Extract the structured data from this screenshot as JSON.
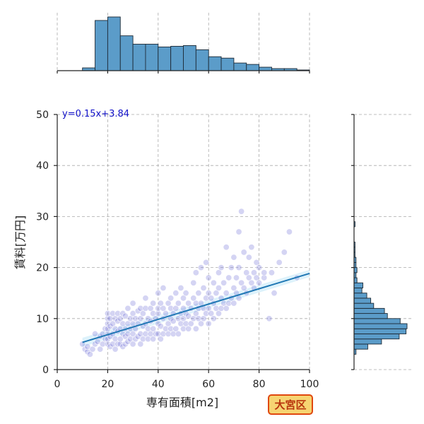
{
  "chart_data": {
    "type": "scatter",
    "xlabel": "専有面積[m2]",
    "ylabel": "賃料[万円]",
    "xlim": [
      0,
      100
    ],
    "ylim": [
      0,
      50
    ],
    "x_ticks": [
      "0",
      "20",
      "40",
      "60",
      "80",
      "100"
    ],
    "y_ticks": [
      "0",
      "10",
      "20",
      "30",
      "40",
      "50"
    ],
    "grid": true,
    "regression": {
      "equation": "y=0.15x+3.84",
      "slope": 0.15,
      "intercept": 3.84,
      "x_range": [
        10,
        100
      ]
    },
    "badge": "大宮区",
    "x_marginal_hist": {
      "bin_edges": [
        10,
        15,
        20,
        25,
        30,
        35,
        40,
        45,
        50,
        55,
        60,
        65,
        70,
        75,
        80,
        85,
        90,
        95,
        100
      ],
      "counts": [
        4,
        72,
        77,
        50,
        38,
        38,
        34,
        35,
        36,
        30,
        20,
        18,
        11,
        9,
        5,
        3,
        3,
        1
      ]
    },
    "y_marginal_hist": {
      "bin_edges": [
        3,
        4,
        5,
        6,
        7,
        8,
        9,
        10,
        11,
        12,
        13,
        14,
        15,
        16,
        17,
        18,
        19,
        20,
        21,
        22,
        23,
        24,
        25,
        26,
        27,
        28,
        29,
        30,
        31
      ],
      "counts": [
        2,
        14,
        28,
        46,
        53,
        54,
        47,
        34,
        31,
        20,
        17,
        13,
        8,
        9,
        3,
        2,
        3,
        2,
        2,
        1,
        1,
        1,
        0,
        0,
        0,
        1,
        0,
        0
      ]
    },
    "points": [
      [
        10,
        5
      ],
      [
        11,
        4
      ],
      [
        12,
        3.5
      ],
      [
        12,
        4.5
      ],
      [
        13,
        3
      ],
      [
        14,
        4
      ],
      [
        15,
        5
      ],
      [
        15,
        7
      ],
      [
        16,
        5.5
      ],
      [
        17,
        4
      ],
      [
        17,
        6.5
      ],
      [
        18,
        7
      ],
      [
        18,
        5
      ],
      [
        19,
        6
      ],
      [
        19,
        8
      ],
      [
        20,
        5
      ],
      [
        20,
        6
      ],
      [
        20,
        7
      ],
      [
        20,
        8
      ],
      [
        20,
        9
      ],
      [
        20,
        10
      ],
      [
        20,
        11
      ],
      [
        21,
        4.5
      ],
      [
        21,
        6.5
      ],
      [
        21,
        8.5
      ],
      [
        21,
        10
      ],
      [
        22,
        5
      ],
      [
        22,
        7
      ],
      [
        22,
        9
      ],
      [
        22,
        11
      ],
      [
        23,
        4
      ],
      [
        23,
        6
      ],
      [
        23,
        8
      ],
      [
        23,
        10
      ],
      [
        24,
        5
      ],
      [
        24,
        7.5
      ],
      [
        24,
        9.5
      ],
      [
        24,
        11
      ],
      [
        25,
        5
      ],
      [
        25,
        6
      ],
      [
        25,
        8
      ],
      [
        25,
        10
      ],
      [
        26,
        4.5
      ],
      [
        26,
        7
      ],
      [
        26,
        9
      ],
      [
        26,
        11
      ],
      [
        27,
        5
      ],
      [
        27,
        6.5
      ],
      [
        27,
        8
      ],
      [
        27,
        10.5
      ],
      [
        28,
        5.5
      ],
      [
        28,
        7
      ],
      [
        28,
        9
      ],
      [
        28,
        12
      ],
      [
        29,
        6
      ],
      [
        29,
        8
      ],
      [
        29,
        10
      ],
      [
        30,
        5
      ],
      [
        30,
        7
      ],
      [
        30,
        9
      ],
      [
        30,
        11
      ],
      [
        30,
        13
      ],
      [
        31,
        6
      ],
      [
        31,
        8
      ],
      [
        31,
        10
      ],
      [
        32,
        6.5
      ],
      [
        32,
        9
      ],
      [
        32,
        11.5
      ],
      [
        33,
        5
      ],
      [
        33,
        7
      ],
      [
        33,
        10
      ],
      [
        33,
        12
      ],
      [
        34,
        6
      ],
      [
        34,
        8.5
      ],
      [
        34,
        11
      ],
      [
        35,
        7
      ],
      [
        35,
        9
      ],
      [
        35,
        12
      ],
      [
        35,
        14
      ],
      [
        36,
        6
      ],
      [
        36,
        8
      ],
      [
        36,
        10
      ],
      [
        37,
        7
      ],
      [
        37,
        9.5
      ],
      [
        37,
        12
      ],
      [
        38,
        6
      ],
      [
        38,
        8
      ],
      [
        38,
        11
      ],
      [
        38,
        13
      ],
      [
        39,
        7
      ],
      [
        39,
        10
      ],
      [
        40,
        7
      ],
      [
        40,
        9
      ],
      [
        40,
        11
      ],
      [
        40,
        12
      ],
      [
        40,
        15
      ],
      [
        41,
        6
      ],
      [
        41,
        8.5
      ],
      [
        41,
        13
      ],
      [
        42,
        7
      ],
      [
        42,
        10
      ],
      [
        42,
        12
      ],
      [
        42,
        16
      ],
      [
        43,
        8
      ],
      [
        43,
        11
      ],
      [
        44,
        7
      ],
      [
        44,
        9
      ],
      [
        44,
        13
      ],
      [
        45,
        8
      ],
      [
        45,
        10
      ],
      [
        45,
        12
      ],
      [
        45,
        14
      ],
      [
        46,
        7
      ],
      [
        46,
        9.5
      ],
      [
        46,
        11
      ],
      [
        47,
        8
      ],
      [
        47,
        12
      ],
      [
        47,
        15
      ],
      [
        48,
        7
      ],
      [
        48,
        10
      ],
      [
        48,
        13
      ],
      [
        49,
        9
      ],
      [
        49,
        11
      ],
      [
        49,
        16
      ],
      [
        50,
        8
      ],
      [
        50,
        10
      ],
      [
        50,
        12
      ],
      [
        50,
        14
      ],
      [
        51,
        9
      ],
      [
        51,
        11
      ],
      [
        51,
        15
      ],
      [
        52,
        8
      ],
      [
        52,
        10.5
      ],
      [
        52,
        13
      ],
      [
        53,
        9
      ],
      [
        53,
        12
      ],
      [
        54,
        10
      ],
      [
        54,
        14
      ],
      [
        54,
        17
      ],
      [
        55,
        8
      ],
      [
        55,
        11
      ],
      [
        55,
        13
      ],
      [
        55,
        19
      ],
      [
        56,
        10
      ],
      [
        56,
        12
      ],
      [
        56,
        15
      ],
      [
        57,
        9
      ],
      [
        57,
        13
      ],
      [
        57,
        20
      ],
      [
        58,
        10
      ],
      [
        58,
        12
      ],
      [
        58,
        16
      ],
      [
        59,
        11
      ],
      [
        59,
        14
      ],
      [
        59,
        21
      ],
      [
        60,
        9
      ],
      [
        60,
        12
      ],
      [
        60,
        15
      ],
      [
        60,
        18
      ],
      [
        61,
        11
      ],
      [
        61,
        14
      ],
      [
        62,
        10
      ],
      [
        62,
        13
      ],
      [
        62,
        17
      ],
      [
        63,
        12
      ],
      [
        63,
        15
      ],
      [
        64,
        11
      ],
      [
        64,
        16
      ],
      [
        64,
        19
      ],
      [
        65,
        12
      ],
      [
        65,
        14
      ],
      [
        65,
        20
      ],
      [
        66,
        13
      ],
      [
        66,
        17
      ],
      [
        67,
        12
      ],
      [
        67,
        15
      ],
      [
        67,
        24
      ],
      [
        68,
        13
      ],
      [
        68,
        18
      ],
      [
        69,
        14
      ],
      [
        69,
        20
      ],
      [
        70,
        13
      ],
      [
        70,
        16
      ],
      [
        70,
        22
      ],
      [
        71,
        15
      ],
      [
        71,
        18
      ],
      [
        72,
        14
      ],
      [
        72,
        20
      ],
      [
        72,
        27
      ],
      [
        73,
        31
      ],
      [
        73,
        17
      ],
      [
        74,
        16
      ],
      [
        74,
        23
      ],
      [
        75,
        15
      ],
      [
        75,
        19
      ],
      [
        76,
        18
      ],
      [
        76,
        22
      ],
      [
        77,
        17
      ],
      [
        77,
        24
      ],
      [
        78,
        16
      ],
      [
        78,
        19
      ],
      [
        79,
        18
      ],
      [
        79,
        21
      ],
      [
        80,
        17
      ],
      [
        80,
        20
      ],
      [
        82,
        18
      ],
      [
        82,
        19
      ],
      [
        84,
        10
      ],
      [
        85,
        19
      ],
      [
        86,
        15
      ],
      [
        88,
        21
      ],
      [
        90,
        23
      ],
      [
        92,
        27
      ],
      [
        95,
        18
      ]
    ]
  }
}
